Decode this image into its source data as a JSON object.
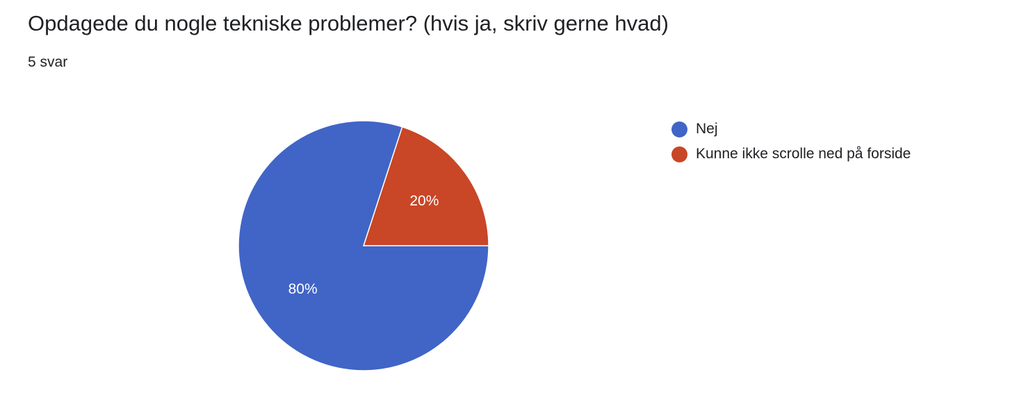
{
  "question": {
    "title": "Opdagede du nogle tekniske problemer? (hvis ja, skriv gerne hvad)",
    "response_count": "5 svar"
  },
  "chart_data": {
    "type": "pie",
    "slices": [
      {
        "label": "Nej",
        "value": 80,
        "percent_label": "80%",
        "color": "#4065c6"
      },
      {
        "label": "Kunne ikke scrolle ned på forside",
        "value": 20,
        "percent_label": "20%",
        "color": "#c94627"
      }
    ],
    "legend_position": "right"
  }
}
